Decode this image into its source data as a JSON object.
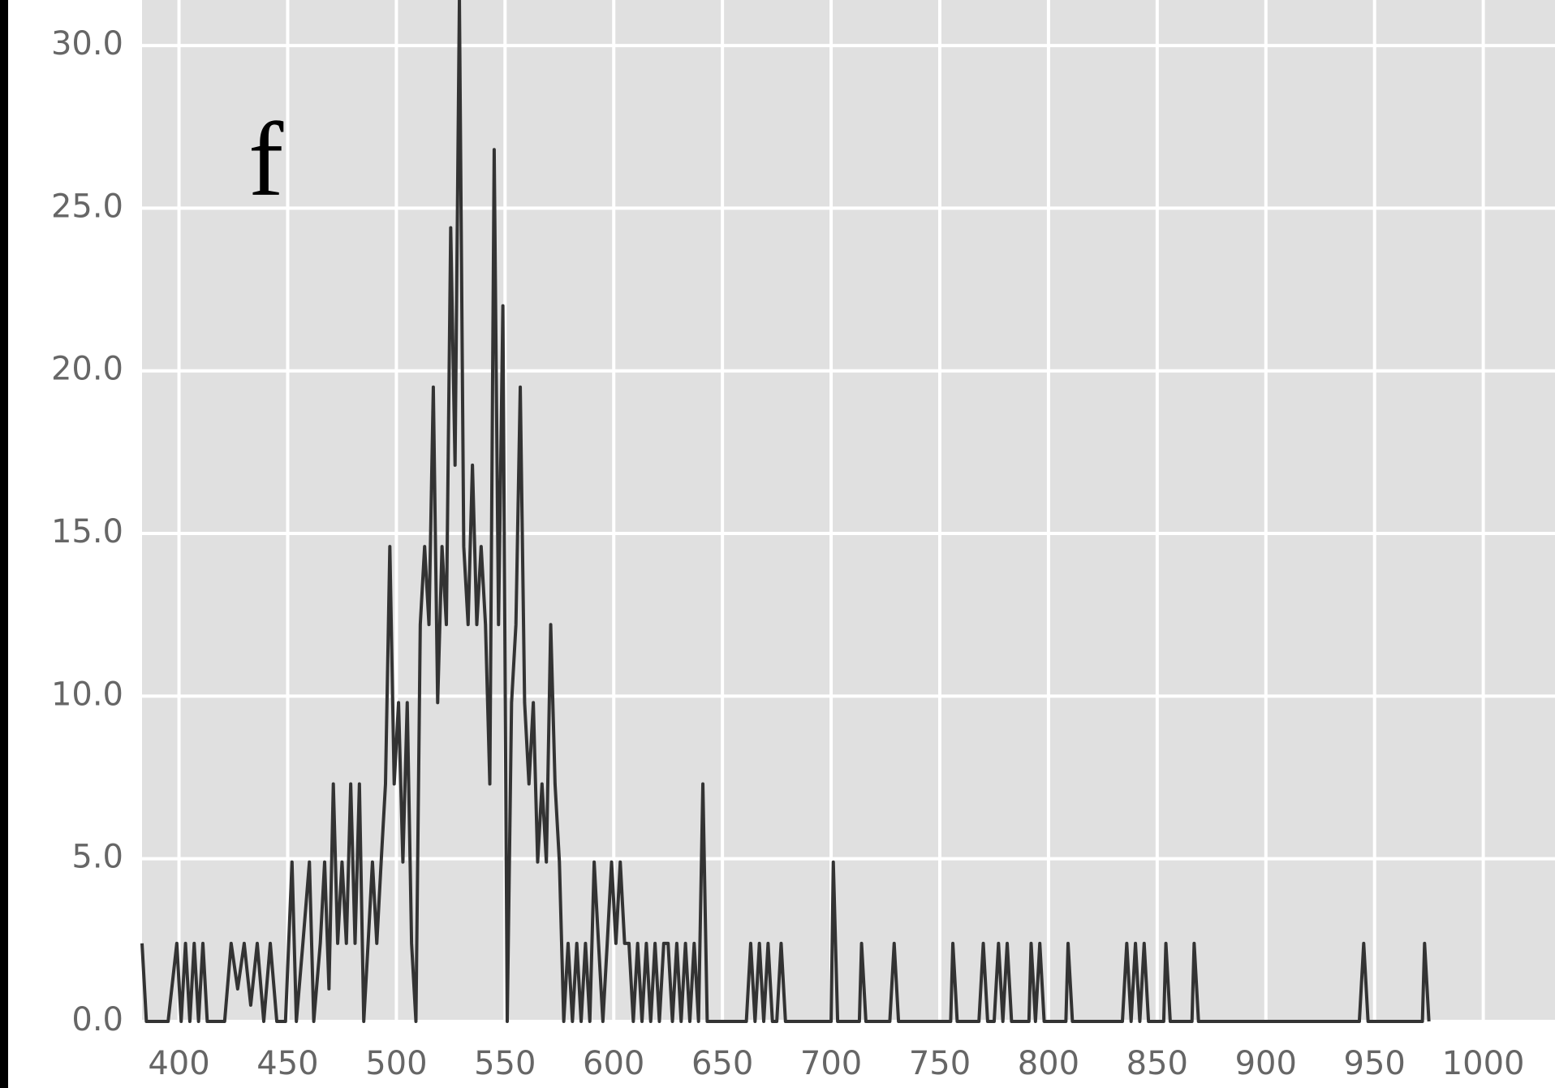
{
  "chart_data": {
    "type": "line",
    "annotation": "f",
    "grid": true,
    "xlim": [
      383,
      1033
    ],
    "ylim": [
      0,
      31.4
    ],
    "xticks": [
      400,
      450,
      500,
      550,
      600,
      650,
      700,
      750,
      800,
      850,
      900,
      950,
      1000
    ],
    "yticks": [
      {
        "value": 0,
        "label": "0.0"
      },
      {
        "value": 5,
        "label": "5.0"
      },
      {
        "value": 10,
        "label": "10.0"
      },
      {
        "value": 15,
        "label": "15.0"
      },
      {
        "value": 20,
        "label": "20.0"
      },
      {
        "value": 25,
        "label": "25.0"
      },
      {
        "value": 30,
        "label": "30.0"
      }
    ],
    "x": [
      383,
      385,
      395,
      399,
      401,
      403,
      405,
      407,
      409,
      411,
      413,
      421,
      424,
      427,
      430,
      433,
      436,
      439,
      442,
      445,
      449,
      452,
      454,
      457,
      460,
      462,
      465,
      467,
      469,
      471,
      473,
      475,
      477,
      479,
      481,
      483,
      485,
      487,
      489,
      491,
      493,
      495,
      497,
      499,
      501,
      503,
      505,
      507,
      509,
      511,
      513,
      515,
      517,
      519,
      521,
      523,
      525,
      527,
      529,
      531,
      533,
      535,
      537,
      539,
      541,
      543,
      545,
      547,
      549,
      551,
      553,
      555,
      557,
      559,
      561,
      563,
      565,
      567,
      569,
      571,
      573,
      575,
      577,
      579,
      581,
      583,
      585,
      587,
      589,
      591,
      593,
      595,
      597,
      599,
      601,
      603,
      605,
      607,
      609,
      611,
      613,
      615,
      617,
      619,
      621,
      623,
      625,
      627,
      629,
      631,
      633,
      635,
      637,
      639,
      641,
      643,
      661,
      663,
      665,
      667,
      669,
      671,
      673,
      675,
      677,
      679,
      700,
      701,
      703,
      713,
      714,
      716,
      727,
      729,
      731,
      733,
      755,
      756,
      758,
      768,
      770,
      772,
      775,
      777,
      779,
      781,
      783,
      791,
      792,
      794,
      796,
      798,
      808,
      809,
      811,
      834,
      836,
      838,
      840,
      842,
      844,
      846,
      853,
      854,
      856,
      866,
      867,
      869,
      943,
      945,
      947,
      972,
      973,
      975
    ],
    "series": [
      {
        "color": "#333333",
        "values": [
          2.4,
          0,
          0,
          2.4,
          0,
          2.4,
          0,
          2.4,
          0,
          2.4,
          0,
          0,
          2.4,
          1,
          2.4,
          0.5,
          2.4,
          0,
          2.4,
          0,
          0,
          4.9,
          0,
          2.4,
          4.9,
          0,
          2.4,
          4.9,
          1,
          7.3,
          2.4,
          4.9,
          2.4,
          7.3,
          2.4,
          7.3,
          0,
          2.4,
          4.9,
          2.4,
          4.9,
          7.3,
          14.6,
          7.3,
          9.8,
          4.9,
          9.8,
          2.4,
          0,
          12.2,
          14.6,
          12.2,
          19.5,
          9.8,
          14.6,
          12.2,
          24.4,
          17.1,
          31.4,
          14.6,
          12.2,
          17.1,
          12.2,
          14.6,
          12.2,
          7.3,
          26.8,
          12.2,
          22.0,
          0,
          9.8,
          12.2,
          19.5,
          9.8,
          7.3,
          9.8,
          4.9,
          7.3,
          4.9,
          12.2,
          7.3,
          4.9,
          0,
          2.4,
          0,
          2.4,
          0,
          2.4,
          0,
          4.9,
          2.4,
          0,
          2.4,
          4.9,
          2.4,
          4.9,
          2.4,
          2.4,
          0,
          2.4,
          0,
          2.4,
          0,
          2.4,
          0,
          2.4,
          2.4,
          0,
          2.4,
          0,
          2.4,
          0,
          2.4,
          0,
          7.3,
          0,
          0,
          2.4,
          0,
          2.4,
          0,
          2.4,
          0,
          0,
          2.4,
          0,
          0,
          4.9,
          0,
          0,
          2.4,
          0,
          0,
          2.4,
          0,
          0,
          0,
          2.4,
          0,
          0,
          2.4,
          0,
          0,
          2.4,
          0,
          2.4,
          0,
          0,
          2.4,
          0,
          2.4,
          0,
          0,
          2.4,
          0,
          0,
          2.4,
          0,
          2.4,
          0,
          2.4,
          0,
          0,
          2.4,
          0,
          0,
          2.4,
          0,
          0,
          2.4,
          0,
          0,
          2.4,
          0
        ]
      }
    ]
  }
}
